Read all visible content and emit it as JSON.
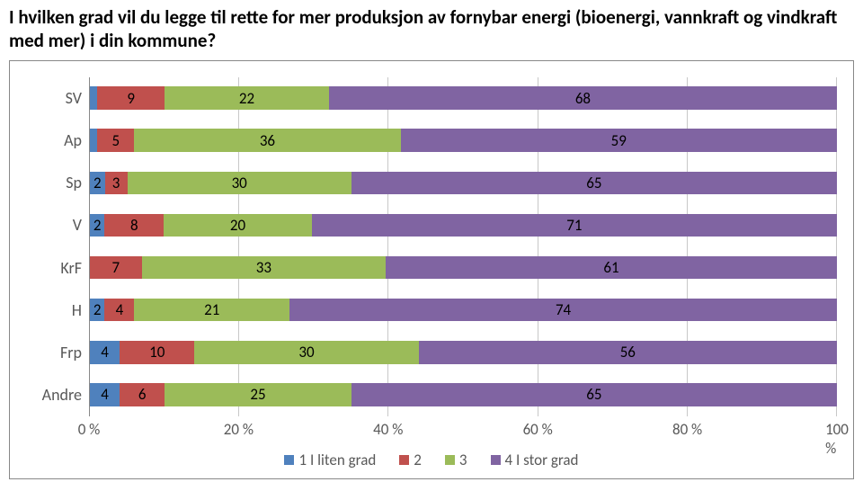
{
  "title": "I hvilken grad vil du legge til rette for mer produksjon av fornybar energi (bioenergi, vannkraft og vindkraft med mer) i din kommune?",
  "chart": {
    "type": "stacked-bar-horizontal",
    "categories": [
      "SV",
      "Ap",
      "Sp",
      "V",
      "KrF",
      "H",
      "Frp",
      "Andre"
    ],
    "rows": [
      {
        "cat": "SV",
        "vals": [
          1,
          9,
          22,
          68
        ],
        "hide": [
          true,
          false,
          false,
          false
        ]
      },
      {
        "cat": "Ap",
        "vals": [
          1,
          5,
          36,
          59
        ],
        "hide": [
          true,
          false,
          false,
          false
        ]
      },
      {
        "cat": "Sp",
        "vals": [
          2,
          3,
          30,
          65
        ],
        "hide": [
          false,
          false,
          false,
          false
        ]
      },
      {
        "cat": "V",
        "vals": [
          2,
          8,
          20,
          71
        ],
        "hide": [
          false,
          false,
          false,
          false
        ],
        "totals": 101
      },
      {
        "cat": "KrF",
        "vals": [
          0,
          7,
          33,
          61
        ],
        "hide": [
          true,
          false,
          false,
          false
        ],
        "totals": 101
      },
      {
        "cat": "H",
        "vals": [
          2,
          4,
          21,
          74
        ],
        "hide": [
          false,
          false,
          false,
          false
        ],
        "totals": 101
      },
      {
        "cat": "Frp",
        "vals": [
          4,
          10,
          30,
          56
        ],
        "hide": [
          false,
          false,
          false,
          false
        ]
      },
      {
        "cat": "Andre",
        "vals": [
          4,
          6,
          25,
          65
        ],
        "hide": [
          false,
          false,
          false,
          false
        ]
      }
    ],
    "series_colors": [
      "#4f81bd",
      "#c0504d",
      "#9bbb59",
      "#8064a2"
    ],
    "series_labels": [
      "1 I liten grad",
      "2",
      "3",
      "4 I stor grad"
    ],
    "axis_ticks": [
      "0 %",
      "20 %",
      "40 %",
      "60 %",
      "80 %",
      "100 %"
    ],
    "tick_positions": [
      0,
      20,
      40,
      60,
      80,
      100
    ],
    "label_fontsize": 18,
    "datalabel_fontsize": 17,
    "background_color": "#ffffff",
    "border_color": "#888888",
    "grid_color": "#c8c8c8",
    "text_color": "#595959"
  }
}
